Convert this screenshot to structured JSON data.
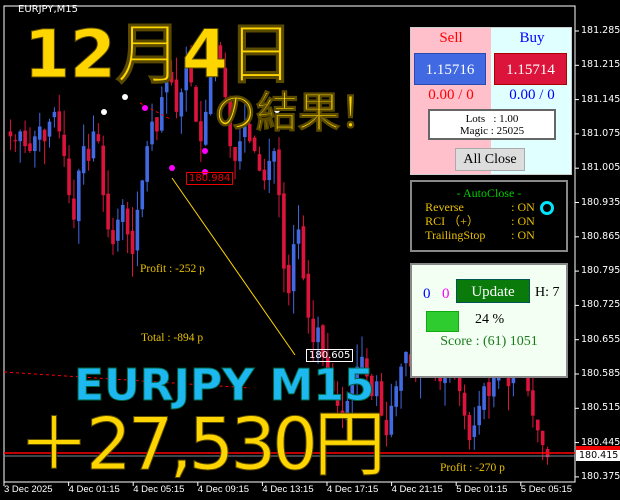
{
  "window": {
    "title": "EURJPY,M15"
  },
  "chart_data": {
    "type": "candlestick",
    "symbol": "EURJPY",
    "timeframe": "M15",
    "ylim": [
      180.375,
      181.32
    ],
    "y_ticks": [
      "181.285",
      "181.215",
      "181.145",
      "181.075",
      "181.005",
      "180.935",
      "180.865",
      "180.795",
      "180.725",
      "180.655",
      "180.585",
      "180.515",
      "180.445",
      "180.375"
    ],
    "x_ticks": [
      "3 Dec 2025",
      "4 Dec 01:15",
      "4 Dec 05:15",
      "4 Dec 09:15",
      "4 Dec 13:15",
      "4 Dec 17:15",
      "4 Dec 21:15",
      "5 Dec 01:15",
      "5 Dec 05:15"
    ],
    "closes": [
      181.07,
      181.06,
      181.08,
      181.05,
      181.04,
      181.07,
      181.09,
      181.06,
      181.1,
      181.12,
      181.08,
      181.03,
      180.95,
      180.9,
      181.0,
      181.05,
      181.02,
      181.08,
      181.06,
      180.95,
      180.88,
      180.85,
      180.9,
      180.93,
      180.87,
      180.83,
      180.92,
      180.98,
      181.05,
      181.1,
      181.08,
      181.15,
      181.2,
      181.18,
      181.12,
      181.16,
      181.22,
      181.18,
      181.1,
      181.06,
      181.12,
      181.2,
      181.25,
      181.22,
      181.15,
      181.05,
      181.02,
      181.06,
      181.1,
      181.06,
      181.04,
      181.0,
      180.98,
      181.02,
      181.04,
      180.95,
      180.8,
      180.75,
      180.85,
      180.88,
      180.78,
      180.7,
      180.65,
      180.68,
      180.62,
      180.58,
      180.55,
      180.52,
      180.5,
      180.53,
      180.57,
      180.6,
      180.62,
      180.58,
      180.54,
      180.57,
      180.5,
      180.46,
      180.52,
      180.56,
      180.6,
      180.63,
      180.6,
      180.58,
      180.62,
      180.66,
      180.63,
      180.6,
      180.57,
      180.6,
      180.63,
      180.58,
      180.55,
      180.5,
      180.45,
      180.48,
      180.52,
      180.56,
      180.54,
      180.58,
      180.62,
      180.6,
      180.56,
      180.6,
      180.64,
      180.6,
      180.55,
      180.5,
      180.47,
      180.44,
      180.415
    ],
    "current_price": "180.415",
    "bull_color": "#4169E1",
    "bear_color": "#DC143C",
    "trade_line": {
      "from": 180.984,
      "to": 180.605,
      "color": "#FFD700"
    }
  },
  "overlay": {
    "date": "12月4日",
    "result": "の結果！",
    "pair": "EURJPY M15",
    "amount": "＋27,530円"
  },
  "annotations": {
    "profit": "Profit : -252 p",
    "total": "Total : -894 p",
    "profit2": "Profit : -270 p",
    "entry_tag": "180.984",
    "exit_tag": "180.605"
  },
  "trade_panel": {
    "sell_label": "Sell",
    "buy_label": "Buy",
    "sell_price": "1.15716",
    "buy_price": "1.15714",
    "sell_pos": "0.00 / 0",
    "buy_pos": "0.00 / 0",
    "lots": "Lots   : 1.00",
    "magic": "Magic : 25025",
    "all_close": "All Close"
  },
  "autoclose_panel": {
    "title": "- AutoClose -",
    "rows": [
      {
        "label": "Reverse",
        "value": ": ON"
      },
      {
        "label": "RCI （+）",
        "value": ": ON"
      },
      {
        "label": "TrailingStop",
        "value": ": ON"
      }
    ],
    "indicator_color": "#00E5FF"
  },
  "score_panel": {
    "count_blue": "0",
    "count_magenta": "0",
    "update": "Update",
    "h": "H: 7",
    "percent": "24 %",
    "progress": 24,
    "score": "Score : (61) 1051"
  }
}
